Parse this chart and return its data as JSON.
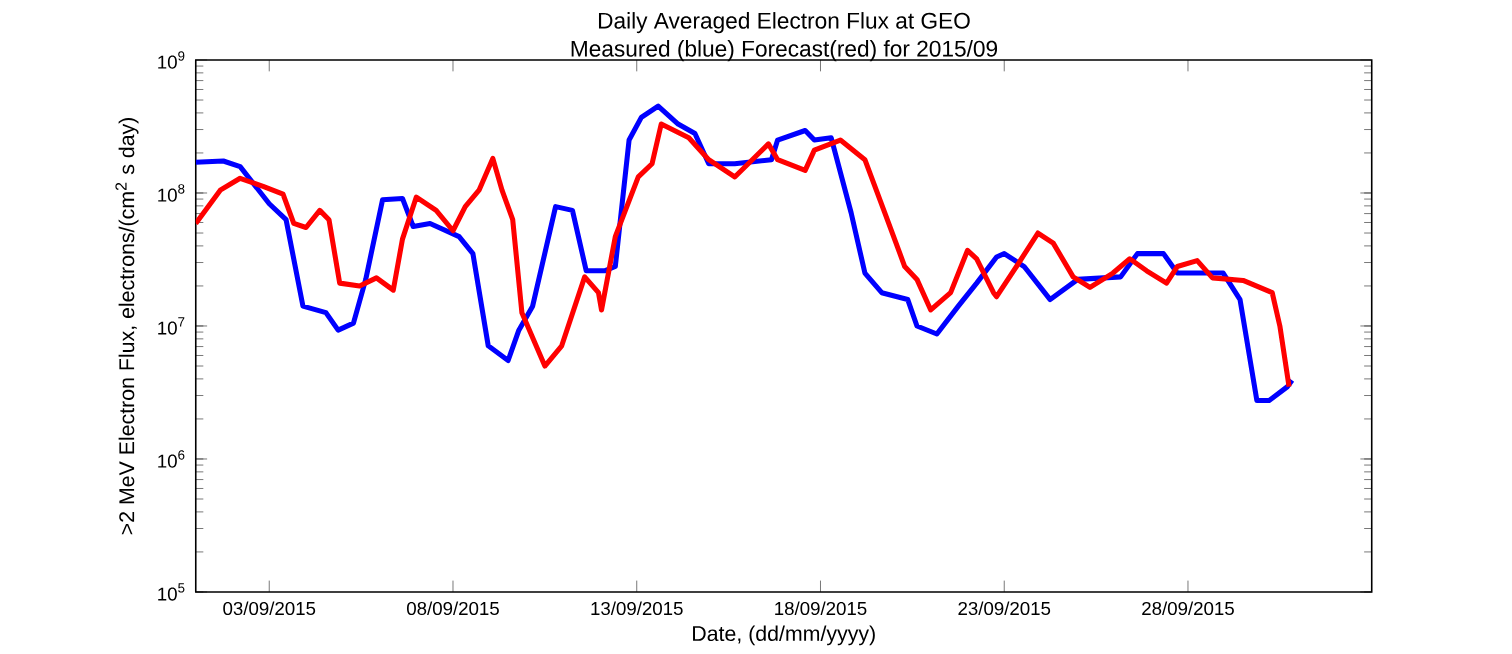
{
  "chart_data": {
    "type": "line",
    "title": "Daily Averaged Electron Flux at GEO",
    "subtitle": "Measured (blue) Forecast(red) for 2015/09",
    "xlabel": "Date, (dd/mm/yyyy)",
    "ylabel": ">2 MeV Electron Flux, electrons/(cm$^{2}$ s day)",
    "log": "y",
    "xlim": [
      "2015-09-01",
      "2015-10-03"
    ],
    "ylim": [
      100000,
      1000000000
    ],
    "xticks": [
      {
        "value": "2015-09-03",
        "label": "03/09/2015"
      },
      {
        "value": "2015-09-08",
        "label": "08/09/2015"
      },
      {
        "value": "2015-09-13",
        "label": "13/09/2015"
      },
      {
        "value": "2015-09-18",
        "label": "18/09/2015"
      },
      {
        "value": "2015-09-23",
        "label": "23/09/2015"
      },
      {
        "value": "2015-09-28",
        "label": "28/09/2015"
      }
    ],
    "yticks": [
      {
        "value": 100000,
        "label": "10$^{5}$"
      },
      {
        "value": 1000000,
        "label": "10$^{6}$"
      },
      {
        "value": 10000000,
        "label": "10$^{7}$"
      },
      {
        "value": 100000000,
        "label": "10$^{8}$"
      },
      {
        "value": 1000000000,
        "label": "10$^{9}$"
      }
    ],
    "series": [
      {
        "color": "#0000ff",
        "x": [
          "2015-09-01T00:00",
          "2015-09-01T18:00",
          "2015-09-02T05:00",
          "2015-09-03T00:00",
          "2015-09-03T11:00",
          "2015-09-03T22:00",
          "2015-09-04T13:00",
          "2015-09-04T21:00",
          "2015-09-05T07:00",
          "2015-09-05T15:00",
          "2015-09-06T02:00",
          "2015-09-06T15:00",
          "2015-09-06T22:00",
          "2015-09-07T09:00",
          "2015-09-08T04:00",
          "2015-09-08T13:00",
          "2015-09-08T23:00",
          "2015-09-09T12:00",
          "2015-09-09T19:00",
          "2015-09-10T04:00",
          "2015-09-10T19:00",
          "2015-09-11T06:00",
          "2015-09-11T15:00",
          "2015-09-11T23:00",
          "2015-09-12T03:00",
          "2015-09-12T10:00",
          "2015-09-12T19:00",
          "2015-09-13T03:00",
          "2015-09-13T14:00",
          "2015-09-14T03:00",
          "2015-09-14T14:00",
          "2015-09-14T23:00",
          "2015-09-15T16:00",
          "2015-09-16T16:00",
          "2015-09-16T20:00",
          "2015-09-17T14:00",
          "2015-09-17T20:00",
          "2015-09-18T07:00",
          "2015-09-18T20:00",
          "2015-09-19T05:00",
          "2015-09-19T16:00",
          "2015-09-20T09:00",
          "2015-09-20T15:00",
          "2015-09-21T04:00",
          "2015-09-21T18:00",
          "2015-09-22T06:00",
          "2015-09-22T19:00",
          "2015-09-23T00:00",
          "2015-09-23T13:00",
          "2015-09-24T06:00",
          "2015-09-25T00:00",
          "2015-09-26T04:00",
          "2015-09-26T15:00",
          "2015-09-27T08:00",
          "2015-09-27T17:00",
          "2015-09-28T23:00",
          "2015-09-29T10:00",
          "2015-09-29T21:00",
          "2015-09-30T05:00",
          "2015-09-30T17:00",
          "2015-09-30T20:00"
        ],
        "values": [
          170000000.0,
          174000000.0,
          158000000.0,
          83000000.0,
          63000000.0,
          14100000.0,
          12600000.0,
          9300000.0,
          10500000.0,
          22400000.0,
          89000000.0,
          91000000.0,
          56000000.0,
          59000000.0,
          47000000.0,
          35000000.0,
          7100000.0,
          5500000.0,
          9300000.0,
          14100000.0,
          79000000.0,
          74000000.0,
          26000000.0,
          26000000.0,
          26000000.0,
          28000000.0,
          250000000.0,
          370000000.0,
          450000000.0,
          330000000.0,
          280000000.0,
          166000000.0,
          166000000.0,
          178000000.0,
          250000000.0,
          295000000.0,
          250000000.0,
          260000000.0,
          71000000.0,
          25000000.0,
          17800000.0,
          15800000.0,
          10000000.0,
          8700000.0,
          14100000.0,
          21000000.0,
          33000000.0,
          35000000.0,
          28000000.0,
          15800000.0,
          22400000.0,
          23400000.0,
          35000000.0,
          35000000.0,
          25000000.0,
          25000000.0,
          15800000.0,
          2750000.0,
          2750000.0,
          3500000.0,
          3900000.0
        ]
      },
      {
        "color": "#ff0000",
        "x": [
          "2015-09-01T00:00",
          "2015-09-01T16:00",
          "2015-09-02T05:00",
          "2015-09-02T20:00",
          "2015-09-03T09:00",
          "2015-09-03T16:00",
          "2015-09-04T00:00",
          "2015-09-04T09:00",
          "2015-09-04T15:00",
          "2015-09-04T22:00",
          "2015-09-05T11:00",
          "2015-09-05T22:00",
          "2015-09-06T09:00",
          "2015-09-06T15:00",
          "2015-09-07T00:00",
          "2015-09-07T13:00",
          "2015-09-08T00:00",
          "2015-09-08T08:00",
          "2015-09-08T17:00",
          "2015-09-09T02:00",
          "2015-09-09T08:00",
          "2015-09-09T15:00",
          "2015-09-09T21:00",
          "2015-09-10T12:00",
          "2015-09-10T23:00",
          "2015-09-11T14:00",
          "2015-09-11T23:00",
          "2015-09-12T01:00",
          "2015-09-12T10:00",
          "2015-09-13T01:00",
          "2015-09-13T10:00",
          "2015-09-13T16:00",
          "2015-09-14T10:00",
          "2015-09-14T23:00",
          "2015-09-15T16:00",
          "2015-09-16T14:00",
          "2015-09-16T20:00",
          "2015-09-17T14:00",
          "2015-09-17T20:00",
          "2015-09-18T13:00",
          "2015-09-19T05:00",
          "2015-09-19T18:00",
          "2015-09-20T07:00",
          "2015-09-20T15:00",
          "2015-09-21T00:00",
          "2015-09-21T13:00",
          "2015-09-22T00:00",
          "2015-09-22T06:00",
          "2015-09-22T17:00",
          "2015-09-22T19:00",
          "2015-09-23T08:00",
          "2015-09-23T22:00",
          "2015-09-24T08:00",
          "2015-09-24T21:00",
          "2015-09-25T08:00",
          "2015-09-25T23:00",
          "2015-09-26T10:00",
          "2015-09-26T21:00",
          "2015-09-27T10:00",
          "2015-09-27T17:00",
          "2015-09-28T06:00",
          "2015-09-28T16:00",
          "2015-09-29T12:00",
          "2015-09-30T07:00",
          "2015-09-30T12:00",
          "2015-09-30T18:00"
        ],
        "values": [
          59000000.0,
          105000000.0,
          129000000.0,
          112000000.0,
          98000000.0,
          59000000.0,
          55000000.0,
          74000000.0,
          63000000.0,
          21000000.0,
          20000000.0,
          23000000.0,
          18600000.0,
          45000000.0,
          93000000.0,
          74000000.0,
          52000000.0,
          79000000.0,
          105000000.0,
          182000000.0,
          105000000.0,
          63000000.0,
          12600000.0,
          5000000.0,
          7100000.0,
          23400000.0,
          17800000.0,
          13200000.0,
          47000000.0,
          132000000.0,
          166000000.0,
          330000000.0,
          260000000.0,
          178000000.0,
          132000000.0,
          234000000.0,
          178000000.0,
          148000000.0,
          210000000.0,
          250000000.0,
          178000000.0,
          71000000.0,
          28000000.0,
          22400000.0,
          13200000.0,
          17800000.0,
          37000000.0,
          32000000.0,
          17800000.0,
          16600000.0,
          28000000.0,
          50000000.0,
          42000000.0,
          23400000.0,
          19500000.0,
          25000000.0,
          32000000.0,
          26000000.0,
          21000000.0,
          28000000.0,
          31000000.0,
          23000000.0,
          22000000.0,
          17800000.0,
          10000000.0,
          3500000.0
        ]
      }
    ]
  }
}
